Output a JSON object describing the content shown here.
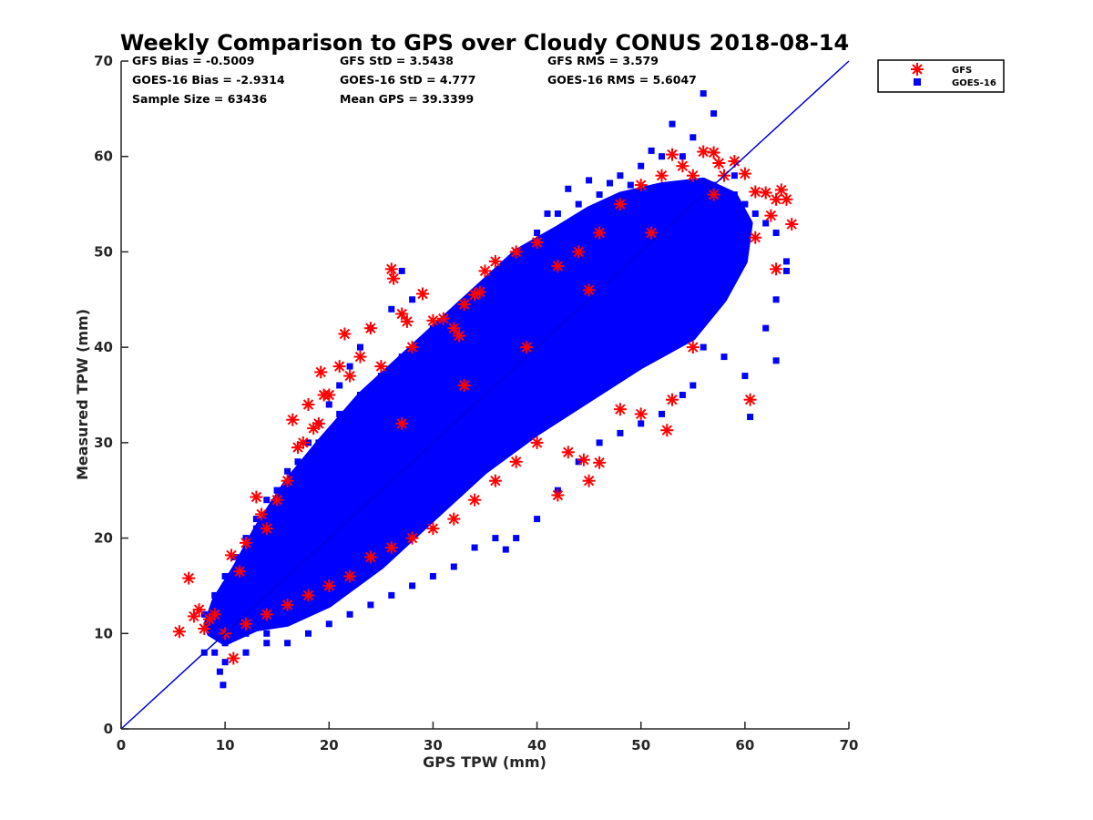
{
  "chart_data": {
    "type": "scatter",
    "title": "Weekly Comparison to GPS over Cloudy CONUS 2018-08-14",
    "xlabel": "GPS TPW (mm)",
    "ylabel": "Measured TPW (mm)",
    "xlim": [
      0,
      70
    ],
    "ylim": [
      0,
      70
    ],
    "xticks": [
      "0",
      "10",
      "20",
      "30",
      "40",
      "50",
      "60",
      "70"
    ],
    "yticks": [
      "0",
      "10",
      "20",
      "30",
      "40",
      "50",
      "60",
      "70"
    ],
    "grid": false,
    "legend_position": "outside-top-right",
    "stats": [
      "GFS Bias = -0.5009",
      "GFS StD = 3.5438",
      "GFS RMS = 3.579",
      "GOES-16 Bias = -2.9314",
      "GOES-16 StD = 4.777",
      "GOES-16 RMS = 5.6047",
      "Sample Size = 63436",
      "Mean GPS = 39.3399"
    ],
    "reference_line": {
      "x": [
        0,
        70
      ],
      "y": [
        0,
        70
      ],
      "color": "#0000d8"
    },
    "series": [
      {
        "name": "GOES-16",
        "marker": "square",
        "color": "#0000ff",
        "points": [
          [
            9,
            8
          ],
          [
            9.5,
            6
          ],
          [
            9.8,
            4.6
          ],
          [
            10,
            9
          ],
          [
            11,
            11
          ],
          [
            12,
            10
          ],
          [
            13,
            12
          ],
          [
            14,
            10
          ],
          [
            15,
            14
          ],
          [
            16,
            12
          ],
          [
            17,
            14
          ],
          [
            18,
            15
          ],
          [
            19,
            16
          ],
          [
            20,
            18
          ],
          [
            21,
            17
          ],
          [
            22,
            19
          ],
          [
            23,
            20
          ],
          [
            24,
            20
          ],
          [
            25,
            22
          ],
          [
            26,
            21
          ],
          [
            27,
            23
          ],
          [
            28,
            25
          ],
          [
            29,
            26
          ],
          [
            30,
            27
          ],
          [
            31,
            28
          ],
          [
            32,
            29
          ],
          [
            33,
            30
          ],
          [
            34,
            31
          ],
          [
            35,
            32
          ],
          [
            36,
            33
          ],
          [
            37,
            34
          ],
          [
            38,
            35
          ],
          [
            39,
            36
          ],
          [
            40,
            37
          ],
          [
            41,
            38
          ],
          [
            42,
            40
          ],
          [
            43,
            41
          ],
          [
            44,
            42
          ],
          [
            45,
            43
          ],
          [
            46,
            44
          ],
          [
            47,
            45
          ],
          [
            48,
            46
          ],
          [
            49,
            47
          ],
          [
            50,
            48
          ],
          [
            51,
            48
          ],
          [
            52,
            49
          ],
          [
            53,
            50
          ],
          [
            54,
            51
          ],
          [
            55,
            52
          ],
          [
            56,
            53
          ],
          [
            57,
            54
          ],
          [
            58,
            55
          ],
          [
            59,
            56
          ],
          [
            60,
            55
          ],
          [
            61,
            54
          ],
          [
            62,
            53
          ],
          [
            63,
            52
          ],
          [
            64,
            48
          ],
          [
            64,
            49
          ],
          [
            63,
            45
          ],
          [
            62,
            42
          ],
          [
            63,
            38.6
          ],
          [
            60.5,
            32.7
          ],
          [
            60,
            37
          ],
          [
            58,
            39
          ],
          [
            56,
            40
          ],
          [
            55,
            36
          ],
          [
            54,
            35
          ],
          [
            52,
            33
          ],
          [
            50,
            32
          ],
          [
            48,
            31
          ],
          [
            46,
            30
          ],
          [
            44,
            28
          ],
          [
            42,
            25
          ],
          [
            40,
            22
          ],
          [
            38,
            20
          ],
          [
            37,
            18.8
          ],
          [
            36,
            20
          ],
          [
            34,
            19
          ],
          [
            32,
            17
          ],
          [
            30,
            16
          ],
          [
            28,
            15
          ],
          [
            26,
            14
          ],
          [
            24,
            13
          ],
          [
            22,
            12
          ],
          [
            20,
            11
          ],
          [
            18,
            10
          ],
          [
            16,
            9
          ],
          [
            14,
            9
          ],
          [
            12,
            8
          ],
          [
            10,
            7
          ],
          [
            8,
            8
          ],
          [
            8,
            12
          ],
          [
            9,
            14
          ],
          [
            10,
            16
          ],
          [
            11,
            18
          ],
          [
            12,
            20
          ],
          [
            13,
            22
          ],
          [
            14,
            24
          ],
          [
            15,
            25
          ],
          [
            16,
            27
          ],
          [
            17,
            28
          ],
          [
            18,
            30
          ],
          [
            19,
            32
          ],
          [
            20,
            34
          ],
          [
            21,
            36
          ],
          [
            22,
            38
          ],
          [
            23,
            40
          ],
          [
            24,
            42
          ],
          [
            26,
            44
          ],
          [
            27,
            48
          ],
          [
            28,
            45
          ],
          [
            30,
            42
          ],
          [
            32,
            43
          ],
          [
            34,
            45
          ],
          [
            36,
            47
          ],
          [
            38,
            50
          ],
          [
            40,
            52
          ],
          [
            42,
            54
          ],
          [
            44,
            55
          ],
          [
            46,
            56
          ],
          [
            48,
            58
          ],
          [
            50,
            59
          ],
          [
            52,
            60
          ],
          [
            54,
            60
          ],
          [
            55,
            62
          ],
          [
            56,
            66.6
          ],
          [
            57,
            64.5
          ],
          [
            53,
            63.4
          ],
          [
            51,
            60.6
          ],
          [
            49,
            57
          ],
          [
            47,
            57.2
          ],
          [
            45,
            57.5
          ],
          [
            43,
            56.6
          ],
          [
            41,
            54
          ],
          [
            39,
            50
          ],
          [
            37,
            46
          ],
          [
            35,
            44
          ],
          [
            33,
            42
          ],
          [
            31,
            41
          ],
          [
            29,
            40
          ],
          [
            27,
            39
          ],
          [
            25,
            37
          ],
          [
            23,
            35
          ],
          [
            21,
            33
          ],
          [
            19,
            30
          ],
          [
            17,
            28
          ],
          [
            15,
            25
          ],
          [
            13,
            21
          ],
          [
            11,
            18
          ],
          [
            10,
            15
          ],
          [
            9,
            13
          ],
          [
            27,
            35
          ],
          [
            33,
            36
          ],
          [
            39,
            41
          ],
          [
            45,
            46
          ],
          [
            51,
            51
          ],
          [
            57,
            57
          ],
          [
            31,
            33
          ],
          [
            37,
            40
          ],
          [
            43,
            44
          ],
          [
            49,
            50
          ],
          [
            55,
            55
          ],
          [
            25,
            27
          ],
          [
            19,
            22
          ],
          [
            15,
            18
          ],
          [
            29,
            30
          ],
          [
            35,
            36
          ],
          [
            41,
            42
          ],
          [
            47,
            48
          ],
          [
            53,
            53
          ],
          [
            59,
            58
          ]
        ]
      },
      {
        "name": "GFS",
        "marker": "asterisk",
        "color": "#ff0000",
        "points": [
          [
            5.6,
            10.2
          ],
          [
            6.5,
            15.8
          ],
          [
            7,
            11.8
          ],
          [
            7.5,
            12.5
          ],
          [
            8,
            10.5
          ],
          [
            8.5,
            11.5
          ],
          [
            10.8,
            7.4
          ],
          [
            10.6,
            18.2
          ],
          [
            11.4,
            16.5
          ],
          [
            12,
            19.5
          ],
          [
            13,
            24.3
          ],
          [
            13.5,
            22.5
          ],
          [
            14,
            21
          ],
          [
            15,
            24
          ],
          [
            16,
            26
          ],
          [
            16.5,
            32.4
          ],
          [
            17.5,
            30
          ],
          [
            17,
            29.5
          ],
          [
            18,
            34
          ],
          [
            18.5,
            31.5
          ],
          [
            19,
            32
          ],
          [
            19.5,
            35
          ],
          [
            19.2,
            37.4
          ],
          [
            20,
            35
          ],
          [
            21,
            38
          ],
          [
            21.5,
            41.4
          ],
          [
            22,
            37
          ],
          [
            23,
            39
          ],
          [
            24,
            42
          ],
          [
            25,
            38
          ],
          [
            26,
            48.2
          ],
          [
            26.2,
            47.2
          ],
          [
            27,
            43.5
          ],
          [
            27.5,
            42.7
          ],
          [
            28,
            40
          ],
          [
            29,
            45.6
          ],
          [
            30,
            42.8
          ],
          [
            31,
            43
          ],
          [
            32,
            42
          ],
          [
            32.5,
            41.2
          ],
          [
            33,
            44.5
          ],
          [
            34,
            45.5
          ],
          [
            34.5,
            45.8
          ],
          [
            35,
            48
          ],
          [
            36,
            49
          ],
          [
            38,
            50
          ],
          [
            40,
            51
          ],
          [
            42,
            48.5
          ],
          [
            44,
            50
          ],
          [
            46,
            52
          ],
          [
            48,
            55
          ],
          [
            50,
            57
          ],
          [
            52,
            58
          ],
          [
            53,
            60.2
          ],
          [
            54,
            59
          ],
          [
            55,
            58
          ],
          [
            56,
            60.5
          ],
          [
            57,
            60.4
          ],
          [
            57.5,
            59.3
          ],
          [
            58,
            58
          ],
          [
            59,
            59.5
          ],
          [
            60,
            58.2
          ],
          [
            61,
            56.3
          ],
          [
            62,
            56.2
          ],
          [
            63,
            55.5
          ],
          [
            63.5,
            56.5
          ],
          [
            64,
            55.5
          ],
          [
            64.5,
            52.9
          ],
          [
            62.5,
            53.8
          ],
          [
            63,
            48.2
          ],
          [
            61,
            51.5
          ],
          [
            60.5,
            34.5
          ],
          [
            55,
            40
          ],
          [
            53,
            34.5
          ],
          [
            52.5,
            31.3
          ],
          [
            50,
            33
          ],
          [
            48,
            33.5
          ],
          [
            46,
            27.9
          ],
          [
            45,
            26
          ],
          [
            44.5,
            28.2
          ],
          [
            43,
            29
          ],
          [
            42,
            24.5
          ],
          [
            40,
            30
          ],
          [
            38,
            28
          ],
          [
            36,
            26
          ],
          [
            34,
            24
          ],
          [
            32,
            22
          ],
          [
            30,
            21
          ],
          [
            28,
            20
          ],
          [
            26,
            19
          ],
          [
            24,
            18
          ],
          [
            22,
            16
          ],
          [
            20,
            15
          ],
          [
            18,
            14
          ],
          [
            16,
            13
          ],
          [
            14,
            12
          ],
          [
            12,
            11
          ],
          [
            10,
            10
          ],
          [
            9,
            12
          ],
          [
            27,
            32
          ],
          [
            33,
            36
          ],
          [
            39,
            40
          ],
          [
            45,
            46
          ],
          [
            51,
            52
          ],
          [
            57,
            56
          ]
        ]
      }
    ]
  },
  "legend": {
    "items": [
      {
        "label": "GFS",
        "marker": "asterisk",
        "color": "#ff0000"
      },
      {
        "label": "GOES-16",
        "marker": "square",
        "color": "#0000ff"
      }
    ]
  },
  "colors": {
    "axis": "#262626",
    "goes": "#0000ff",
    "gfs": "#ff0000",
    "ref_line": "#0000d8"
  }
}
